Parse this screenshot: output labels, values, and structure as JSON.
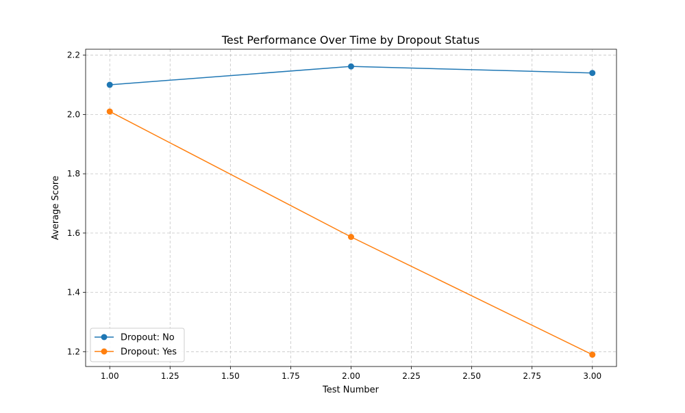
{
  "chart_data": {
    "type": "line",
    "title": "Test Performance Over Time by Dropout Status",
    "xlabel": "Test Number",
    "ylabel": "Average Score",
    "xlim": [
      0.9,
      3.1
    ],
    "ylim": [
      1.15,
      2.22
    ],
    "x_ticks": [
      1.0,
      1.25,
      1.5,
      1.75,
      2.0,
      2.25,
      2.5,
      2.75,
      3.0
    ],
    "x_tick_labels": [
      "1.00",
      "1.25",
      "1.50",
      "1.75",
      "2.00",
      "2.25",
      "2.50",
      "2.75",
      "3.00"
    ],
    "y_ticks": [
      1.2,
      1.4,
      1.6,
      1.8,
      2.0,
      2.2
    ],
    "y_tick_labels": [
      "1.2",
      "1.4",
      "1.6",
      "1.8",
      "2.0",
      "2.2"
    ],
    "grid": true,
    "legend_position": "lower-left",
    "series": [
      {
        "name": "Dropout: No",
        "color": "#1f77b4",
        "x": [
          1,
          2,
          3
        ],
        "y": [
          2.1,
          2.162,
          2.14
        ]
      },
      {
        "name": "Dropout: Yes",
        "color": "#ff7f0e",
        "x": [
          1,
          2,
          3
        ],
        "y": [
          2.01,
          1.587,
          1.19
        ]
      }
    ]
  }
}
